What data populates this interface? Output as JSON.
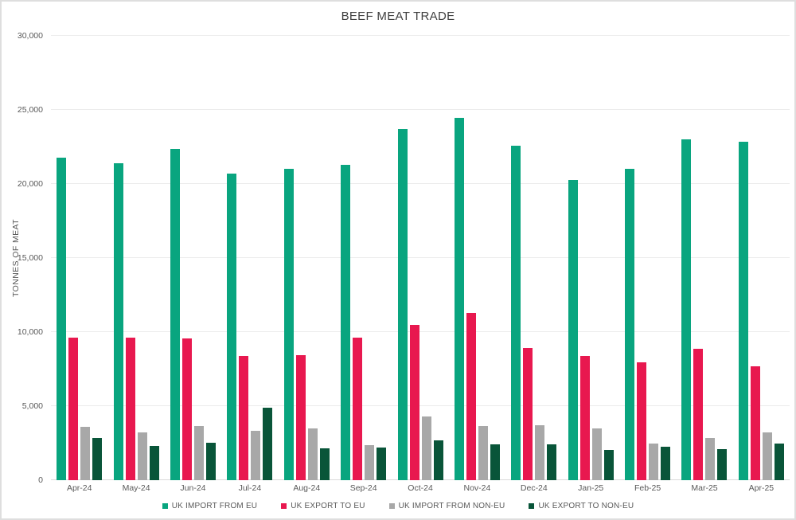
{
  "title": "BEEF MEAT TRADE",
  "y_axis": {
    "label": "TONNES OF MEAT",
    "ticks": [
      {
        "label": "0",
        "value": 0
      },
      {
        "label": "5,000",
        "value": 5000
      },
      {
        "label": "10,000",
        "value": 10000
      },
      {
        "label": "15,000",
        "value": 15000
      },
      {
        "label": "20,000",
        "value": 20000
      },
      {
        "label": "25,000",
        "value": 25000
      },
      {
        "label": "30,000",
        "value": 30000
      }
    ]
  },
  "chart_data": {
    "type": "bar",
    "title": "BEEF MEAT TRADE",
    "xlabel": "",
    "ylabel": "TONNES OF MEAT",
    "ylim": [
      0,
      30000
    ],
    "grid": true,
    "legend_position": "bottom",
    "categories": [
      "Apr-24",
      "May-24",
      "Jun-24",
      "Jul-24",
      "Aug-24",
      "Sep-24",
      "Oct-24",
      "Nov-24",
      "Dec-24",
      "Jan-25",
      "Feb-25",
      "Mar-25",
      "Apr-25"
    ],
    "series": [
      {
        "name": "UK IMPORT FROM EU",
        "color": "#09A57F",
        "values": [
          21800,
          21400,
          22350,
          20700,
          21000,
          21300,
          23700,
          24450,
          22600,
          20250,
          21000,
          23000,
          22850
        ]
      },
      {
        "name": "UK EXPORT TO EU",
        "color": "#E8184F",
        "values": [
          9650,
          9650,
          9550,
          8400,
          8450,
          9600,
          10500,
          11300,
          8950,
          8400,
          7950,
          8850,
          7700
        ]
      },
      {
        "name": "UK IMPORT FROM NON-EU",
        "color": "#A8A8A8",
        "values": [
          3600,
          3250,
          3650,
          3350,
          3500,
          2350,
          4300,
          3650,
          3700,
          3500,
          2450,
          2850,
          3250
        ]
      },
      {
        "name": "UK EXPORT TO NON-EU",
        "color": "#095539",
        "values": [
          2850,
          2300,
          2550,
          4900,
          2150,
          2200,
          2700,
          2400,
          2400,
          2050,
          2250,
          2100,
          2450
        ]
      }
    ]
  }
}
